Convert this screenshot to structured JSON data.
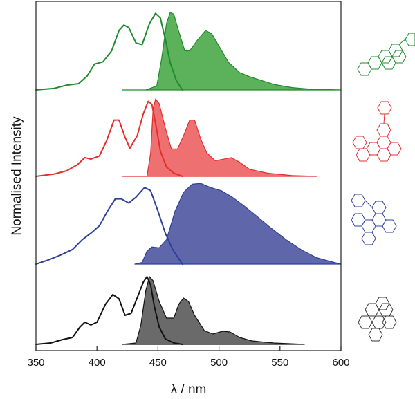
{
  "chart_data": {
    "type": "area",
    "xlabel": "λ / nm",
    "ylabel": "Normalised Intensity",
    "xlim": [
      350,
      600
    ],
    "x_ticks": [
      350,
      400,
      450,
      500,
      550,
      600
    ],
    "x_tick_labels": [
      "350",
      "400",
      "450",
      "500",
      "550",
      "600"
    ],
    "y_ticks_shown": false,
    "panels": [
      {
        "color": "#1f8a2e",
        "fill": "#5cb25a",
        "absorption": [
          [
            350,
            0.0
          ],
          [
            365,
            0.02
          ],
          [
            375,
            0.06
          ],
          [
            385,
            0.08
          ],
          [
            392,
            0.18
          ],
          [
            398,
            0.33
          ],
          [
            405,
            0.36
          ],
          [
            412,
            0.5
          ],
          [
            418,
            0.76
          ],
          [
            422,
            0.83
          ],
          [
            426,
            0.8
          ],
          [
            432,
            0.6
          ],
          [
            437,
            0.58
          ],
          [
            443,
            0.85
          ],
          [
            448,
            0.98
          ],
          [
            452,
            0.92
          ],
          [
            456,
            0.65
          ],
          [
            460,
            0.35
          ],
          [
            465,
            0.12
          ],
          [
            470,
            0.0
          ]
        ],
        "emission": [
          [
            421,
            0.0
          ],
          [
            440,
            0.0
          ],
          [
            449,
            0.05
          ],
          [
            453,
            0.4
          ],
          [
            457,
            0.85
          ],
          [
            460,
            0.99
          ],
          [
            463,
            0.97
          ],
          [
            467,
            0.75
          ],
          [
            472,
            0.5
          ],
          [
            476,
            0.5
          ],
          [
            482,
            0.63
          ],
          [
            489,
            0.76
          ],
          [
            494,
            0.72
          ],
          [
            500,
            0.56
          ],
          [
            508,
            0.35
          ],
          [
            517,
            0.22
          ],
          [
            525,
            0.17
          ],
          [
            535,
            0.12
          ],
          [
            545,
            0.07
          ],
          [
            560,
            0.03
          ],
          [
            575,
            0.01
          ],
          [
            600,
            0.0
          ]
        ]
      },
      {
        "color": "#e32d2d",
        "fill": "#ee7070",
        "absorption": [
          [
            350,
            0.0
          ],
          [
            365,
            0.03
          ],
          [
            375,
            0.07
          ],
          [
            384,
            0.15
          ],
          [
            390,
            0.24
          ],
          [
            395,
            0.22
          ],
          [
            402,
            0.26
          ],
          [
            408,
            0.46
          ],
          [
            414,
            0.72
          ],
          [
            418,
            0.72
          ],
          [
            423,
            0.5
          ],
          [
            427,
            0.36
          ],
          [
            433,
            0.52
          ],
          [
            438,
            0.8
          ],
          [
            442,
            0.96
          ],
          [
            445,
            0.92
          ],
          [
            448,
            0.68
          ],
          [
            452,
            0.32
          ],
          [
            457,
            0.12
          ],
          [
            463,
            0.04
          ],
          [
            470,
            0.0
          ]
        ],
        "emission": [
          [
            421,
            0.0
          ],
          [
            441,
            0.0
          ],
          [
            444,
            0.3
          ],
          [
            446,
            0.85
          ],
          [
            448,
            0.99
          ],
          [
            451,
            0.93
          ],
          [
            456,
            0.62
          ],
          [
            461,
            0.35
          ],
          [
            466,
            0.35
          ],
          [
            471,
            0.52
          ],
          [
            476,
            0.72
          ],
          [
            480,
            0.72
          ],
          [
            485,
            0.48
          ],
          [
            490,
            0.3
          ],
          [
            497,
            0.2
          ],
          [
            504,
            0.22
          ],
          [
            510,
            0.24
          ],
          [
            517,
            0.18
          ],
          [
            525,
            0.09
          ],
          [
            540,
            0.04
          ],
          [
            560,
            0.01
          ],
          [
            580,
            0.0
          ]
        ]
      },
      {
        "color": "#2e3f9c",
        "fill": "#5f66aa",
        "absorption": [
          [
            350,
            0.0
          ],
          [
            360,
            0.05
          ],
          [
            370,
            0.11
          ],
          [
            380,
            0.18
          ],
          [
            388,
            0.3
          ],
          [
            395,
            0.38
          ],
          [
            402,
            0.47
          ],
          [
            409,
            0.66
          ],
          [
            415,
            0.8
          ],
          [
            420,
            0.8
          ],
          [
            426,
            0.75
          ],
          [
            432,
            0.82
          ],
          [
            439,
            0.94
          ],
          [
            444,
            0.9
          ],
          [
            450,
            0.65
          ],
          [
            456,
            0.38
          ],
          [
            462,
            0.18
          ],
          [
            470,
            0.0
          ]
        ],
        "emission": [
          [
            431,
            0.0
          ],
          [
            437,
            0.02
          ],
          [
            441,
            0.16
          ],
          [
            445,
            0.21
          ],
          [
            451,
            0.2
          ],
          [
            457,
            0.3
          ],
          [
            464,
            0.65
          ],
          [
            471,
            0.88
          ],
          [
            478,
            0.98
          ],
          [
            485,
            0.99
          ],
          [
            493,
            0.94
          ],
          [
            502,
            0.9
          ],
          [
            511,
            0.82
          ],
          [
            520,
            0.72
          ],
          [
            530,
            0.6
          ],
          [
            542,
            0.45
          ],
          [
            555,
            0.3
          ],
          [
            568,
            0.17
          ],
          [
            580,
            0.08
          ],
          [
            592,
            0.03
          ],
          [
            600,
            0.0
          ]
        ]
      },
      {
        "color": "#111111",
        "fill": "#6a6a6a",
        "absorption": [
          [
            350,
            0.0
          ],
          [
            362,
            0.02
          ],
          [
            372,
            0.07
          ],
          [
            380,
            0.1
          ],
          [
            386,
            0.25
          ],
          [
            390,
            0.32
          ],
          [
            395,
            0.28
          ],
          [
            400,
            0.32
          ],
          [
            407,
            0.58
          ],
          [
            413,
            0.72
          ],
          [
            418,
            0.66
          ],
          [
            423,
            0.42
          ],
          [
            428,
            0.45
          ],
          [
            434,
            0.72
          ],
          [
            438,
            0.9
          ],
          [
            441,
            0.98
          ],
          [
            444,
            0.86
          ],
          [
            447,
            0.55
          ],
          [
            451,
            0.25
          ],
          [
            456,
            0.08
          ],
          [
            463,
            0.02
          ],
          [
            470,
            0.0
          ]
        ],
        "emission": [
          [
            421,
            0.0
          ],
          [
            432,
            0.02
          ],
          [
            436,
            0.28
          ],
          [
            440,
            0.78
          ],
          [
            443,
            0.98
          ],
          [
            446,
            0.92
          ],
          [
            451,
            0.62
          ],
          [
            457,
            0.38
          ],
          [
            463,
            0.38
          ],
          [
            467,
            0.58
          ],
          [
            471,
            0.67
          ],
          [
            475,
            0.62
          ],
          [
            480,
            0.42
          ],
          [
            488,
            0.2
          ],
          [
            495,
            0.15
          ],
          [
            503,
            0.19
          ],
          [
            509,
            0.18
          ],
          [
            517,
            0.1
          ],
          [
            527,
            0.05
          ],
          [
            545,
            0.02
          ],
          [
            570,
            0.0
          ]
        ]
      }
    ]
  }
}
